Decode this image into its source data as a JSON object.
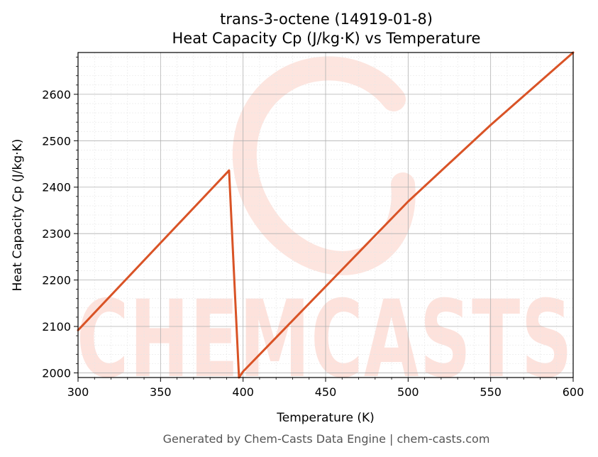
{
  "colors": {
    "line": "#d95326",
    "grid_major": "#b0b0b0",
    "grid_minor": "#e6e6e6",
    "watermark": "#fde2dc",
    "footer": "#555555"
  },
  "watermark": {
    "text": "CHEMCASTS"
  },
  "footer": {
    "text": "Generated by Chem-Casts Data Engine | chem-casts.com"
  },
  "chart_data": {
    "type": "line",
    "title": "trans-3-octene (14919-01-8)",
    "subtitle": "Heat Capacity Cp (J/kg·K) vs Temperature",
    "xlabel": "Temperature (K)",
    "ylabel": "Heat Capacity Cp (J/kg·K)",
    "xlim": [
      300,
      600
    ],
    "ylim": [
      1990,
      2690
    ],
    "xticks": [
      300,
      350,
      400,
      450,
      500,
      550,
      600
    ],
    "yticks": [
      2000,
      2100,
      2200,
      2300,
      2400,
      2500,
      2600
    ],
    "grid": true,
    "series": [
      {
        "color": "#d95326",
        "x": [
          300,
          391.5,
          397.5,
          400,
          450,
          500,
          550,
          600
        ],
        "y": [
          2092,
          2436,
          1990,
          2003,
          2186,
          2369,
          2534,
          2690
        ]
      }
    ]
  }
}
